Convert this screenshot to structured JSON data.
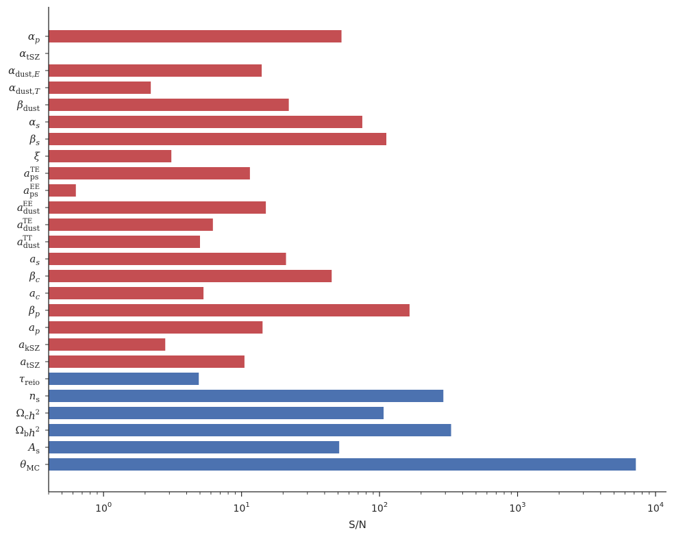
{
  "colors": {
    "nuisance": "#c44e52",
    "cosmology": "#4c72b0",
    "axis": "#262626"
  },
  "chart_data": {
    "type": "bar",
    "orientation": "horizontal",
    "xscale": "log",
    "xlabel": "S/N",
    "ylabel": "",
    "xlim": [
      0.4,
      12000
    ],
    "grid": false,
    "categories": [
      "α_p",
      "α_tSZ",
      "α_dust,E",
      "α_dust,T",
      "β_dust",
      "α_s",
      "β_s",
      "ξ",
      "a_ps^TE",
      "a_ps^EE",
      "a_dust^EE",
      "a_dust^TE",
      "a_dust^TT",
      "a_s",
      "β_c",
      "a_c",
      "β_p",
      "a_p",
      "a_kSZ",
      "a_tSZ",
      "τ_reio",
      "n_s",
      "Ω_c h^2",
      "Ω_b h^2",
      "A_s",
      "θ_MC"
    ],
    "values": [
      53,
      0,
      14,
      2.2,
      22,
      75,
      112,
      3.1,
      11.5,
      0.63,
      15,
      6.2,
      5,
      21,
      45,
      5.3,
      165,
      14.2,
      2.8,
      10.5,
      4.9,
      290,
      107,
      330,
      51,
      7200
    ],
    "groups": [
      "nuisance",
      "nuisance",
      "nuisance",
      "nuisance",
      "nuisance",
      "nuisance",
      "nuisance",
      "nuisance",
      "nuisance",
      "nuisance",
      "nuisance",
      "nuisance",
      "nuisance",
      "nuisance",
      "nuisance",
      "nuisance",
      "nuisance",
      "nuisance",
      "nuisance",
      "nuisance",
      "cosmology",
      "cosmology",
      "cosmology",
      "cosmology",
      "cosmology",
      "cosmology"
    ],
    "xticks": [
      {
        "base": "10",
        "exp": "0",
        "value": 1
      },
      {
        "base": "10",
        "exp": "1",
        "value": 10
      },
      {
        "base": "10",
        "exp": "2",
        "value": 100
      },
      {
        "base": "10",
        "exp": "3",
        "value": 1000
      },
      {
        "base": "10",
        "exp": "4",
        "value": 10000
      }
    ]
  }
}
